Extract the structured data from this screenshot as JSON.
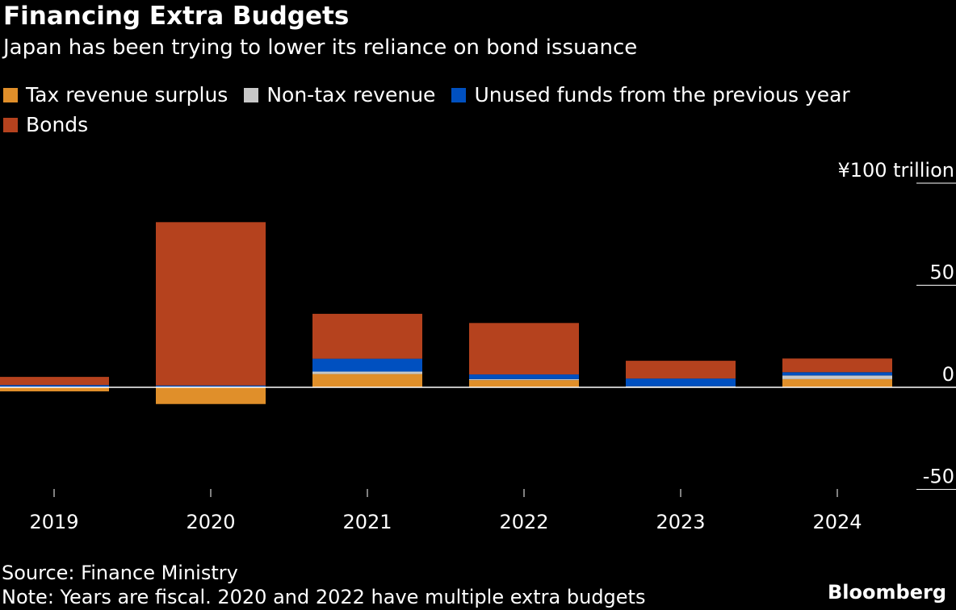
{
  "title": "Financing Extra Budgets",
  "subtitle": "Japan has been trying to lower its reliance on bond issuance",
  "source": "Source: Finance Ministry",
  "note": "Note: Years are fiscal. 2020 and 2022 have multiple extra budgets",
  "logo": "Bloomberg",
  "chart_data": {
    "type": "bar",
    "stacked": true,
    "categories": [
      "2019",
      "2020",
      "2021",
      "2022",
      "2023",
      "2024"
    ],
    "series": [
      {
        "name": "Tax revenue surplus",
        "color": "#e08f2a",
        "values": [
          -2.0,
          -8.2,
          6.5,
          3.5,
          0,
          4.0
        ]
      },
      {
        "name": "Non-tax revenue",
        "color": "#c8c8c8",
        "values": [
          0.2,
          0.3,
          1.2,
          0.5,
          0.5,
          1.8
        ]
      },
      {
        "name": "Unused funds from the previous year",
        "color": "#0050c0",
        "values": [
          0.9,
          0.6,
          6.3,
          2.3,
          3.8,
          1.6
        ]
      },
      {
        "name": "Bonds",
        "color": "#b5421e",
        "values": [
          4.0,
          80.0,
          22.0,
          25.2,
          8.7,
          6.7
        ]
      }
    ],
    "ylabel": "¥100 trillion",
    "yticks": [
      {
        "v": 100,
        "label": "¥100 trillion"
      },
      {
        "v": 50,
        "label": "50"
      },
      {
        "v": 0,
        "label": "0"
      },
      {
        "v": -50,
        "label": "-50"
      }
    ],
    "ylim": [
      -50,
      100
    ],
    "legend": "top"
  }
}
